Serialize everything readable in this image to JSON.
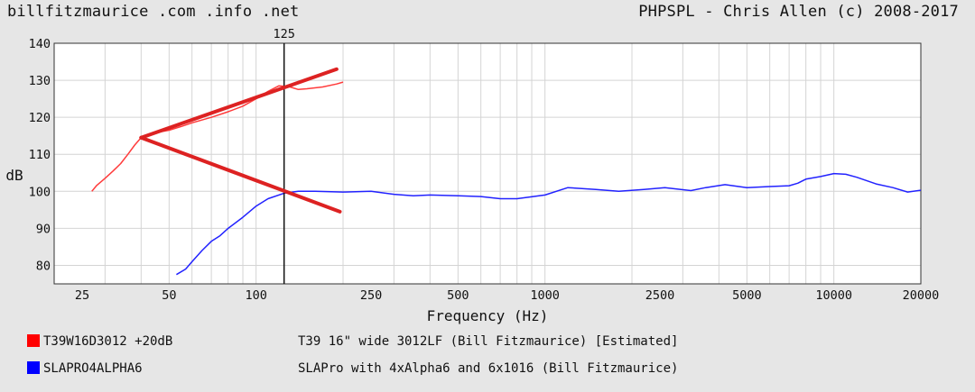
{
  "header": {
    "site": "billfitzmaurice .com .info .net",
    "credit": "PHPSPL - Chris Allen (c) 2008-2017"
  },
  "chart_data": {
    "type": "line",
    "title": "",
    "xlabel": "Frequency (Hz)",
    "ylabel": "dB",
    "xscale": "log",
    "xlim": [
      20,
      20000
    ],
    "ylim": [
      75,
      140
    ],
    "yticks": [
      80,
      90,
      100,
      110,
      120,
      130,
      140
    ],
    "xticks": [
      25,
      50,
      100,
      250,
      500,
      1000,
      2500,
      5000,
      10000,
      20000
    ],
    "xtick_labels": [
      "25",
      "50",
      "100",
      "250",
      "500",
      "1000",
      "2500",
      "5000",
      "10000",
      "20000"
    ],
    "grid": true,
    "marker": {
      "x": 125,
      "label": "125"
    },
    "series": [
      {
        "name": "T39W16D3012 +20dB",
        "description": "T39 16\" wide 3012LF (Bill Fitzmaurice) [Estimated]",
        "color": "#ff3b3b",
        "points": [
          [
            27,
            100
          ],
          [
            28,
            101.5
          ],
          [
            30,
            103.5
          ],
          [
            32,
            105.5
          ],
          [
            34,
            107.5
          ],
          [
            36,
            110
          ],
          [
            38,
            112.5
          ],
          [
            40,
            114.5
          ],
          [
            43,
            115.5
          ],
          [
            46,
            116
          ],
          [
            50,
            116.5
          ],
          [
            55,
            117.5
          ],
          [
            60,
            118.5
          ],
          [
            70,
            120
          ],
          [
            80,
            121.5
          ],
          [
            90,
            123
          ],
          [
            100,
            125
          ],
          [
            110,
            127
          ],
          [
            120,
            128.5
          ],
          [
            130,
            128.3
          ],
          [
            140,
            127.5
          ],
          [
            150,
            127.7
          ],
          [
            170,
            128.2
          ],
          [
            190,
            129
          ],
          [
            200,
            129.5
          ]
        ]
      },
      {
        "name": "SLAPRO4ALPHA6",
        "description": "SLAPro with 4xAlpha6 and 6x1016 (Bill Fitzmaurice)",
        "color": "#2222ff",
        "points": [
          [
            53,
            77.5
          ],
          [
            57,
            79
          ],
          [
            60,
            81
          ],
          [
            65,
            84
          ],
          [
            70,
            86.5
          ],
          [
            75,
            88
          ],
          [
            80,
            90
          ],
          [
            90,
            93
          ],
          [
            100,
            96
          ],
          [
            110,
            98
          ],
          [
            125,
            99.5
          ],
          [
            140,
            100
          ],
          [
            160,
            100
          ],
          [
            200,
            99.8
          ],
          [
            250,
            100
          ],
          [
            300,
            99.2
          ],
          [
            350,
            98.8
          ],
          [
            400,
            99
          ],
          [
            500,
            98.8
          ],
          [
            600,
            98.6
          ],
          [
            700,
            98
          ],
          [
            800,
            98
          ],
          [
            1000,
            99
          ],
          [
            1200,
            101
          ],
          [
            1500,
            100.5
          ],
          [
            1800,
            100
          ],
          [
            2200,
            100.5
          ],
          [
            2600,
            101
          ],
          [
            3200,
            100.2
          ],
          [
            3600,
            101
          ],
          [
            4200,
            101.8
          ],
          [
            5000,
            101
          ],
          [
            6000,
            101.3
          ],
          [
            7000,
            101.5
          ],
          [
            7500,
            102.2
          ],
          [
            8000,
            103.3
          ],
          [
            9000,
            104
          ],
          [
            10000,
            104.8
          ],
          [
            11000,
            104.6
          ],
          [
            12000,
            103.8
          ],
          [
            14000,
            102
          ],
          [
            16000,
            101
          ],
          [
            18000,
            99.8
          ],
          [
            20000,
            100.3
          ]
        ]
      }
    ],
    "annotations": [
      {
        "type": "line",
        "color": "#dd2222",
        "from": [
          40,
          114.5
        ],
        "to": [
          190,
          133
        ]
      },
      {
        "type": "line",
        "color": "#dd2222",
        "from": [
          40,
          114.5
        ],
        "to": [
          195,
          94.5
        ]
      }
    ]
  }
}
